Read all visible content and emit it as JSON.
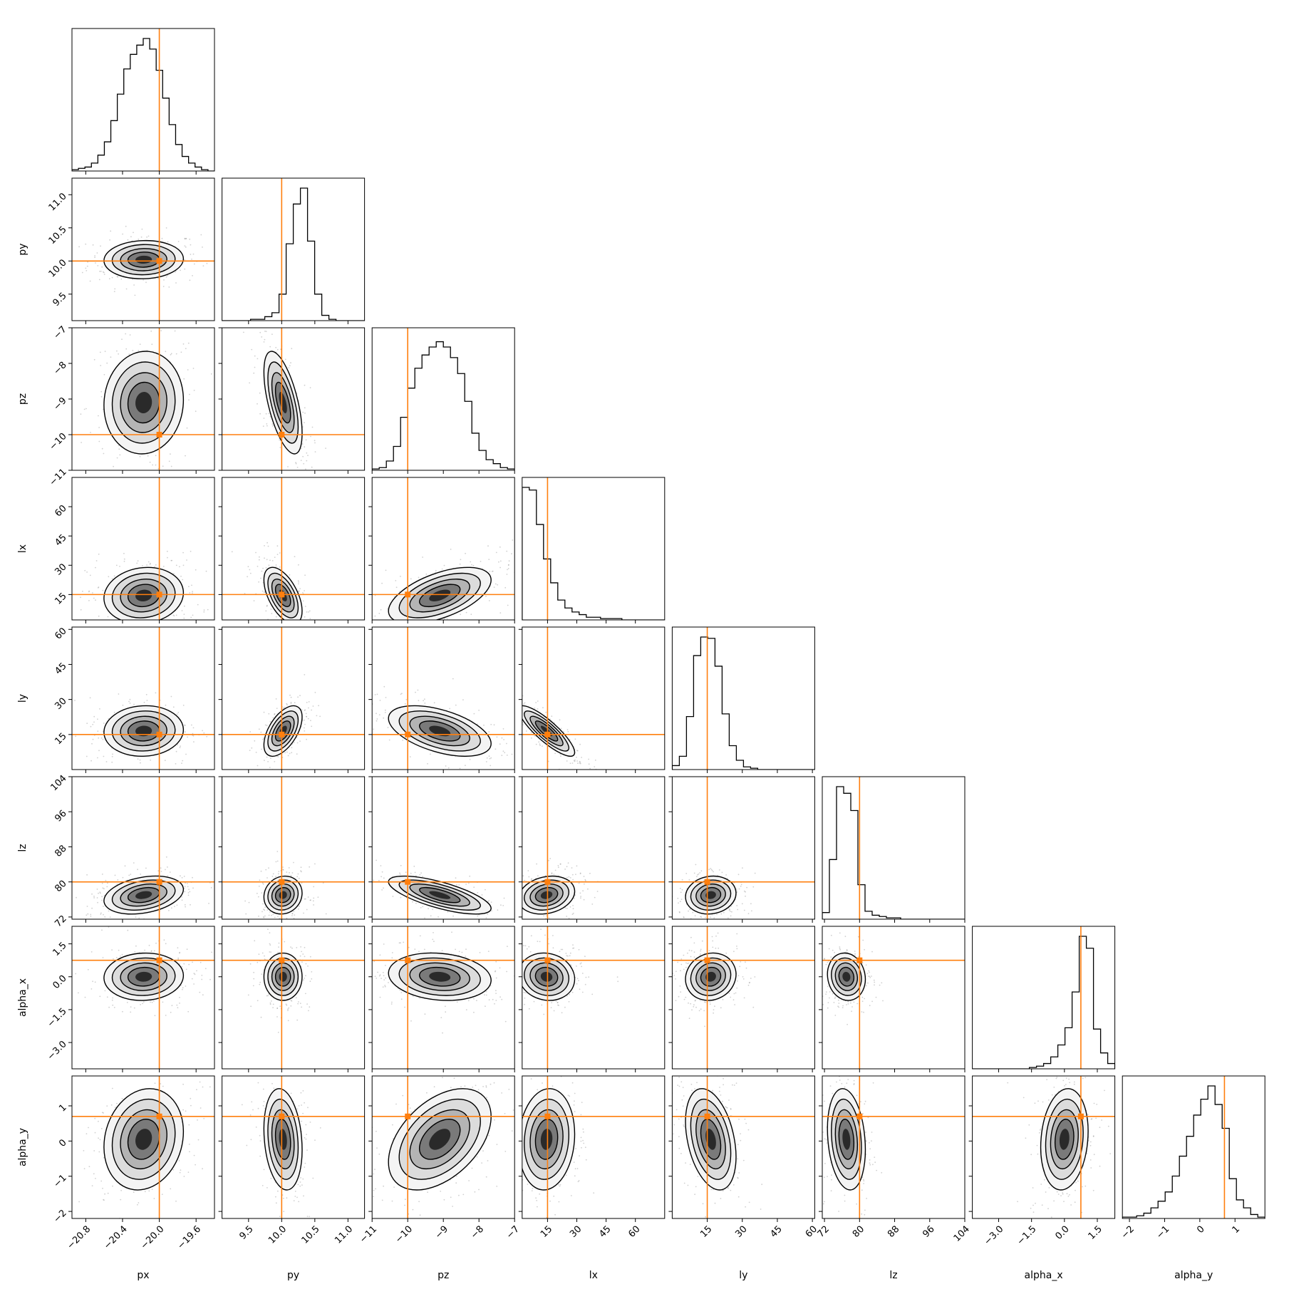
{
  "chart_data": {
    "type": "corner",
    "truth_color": "#ff7f0e",
    "parameters": [
      {
        "key": "px",
        "label": "px",
        "range": [
          -20.95,
          -19.4
        ],
        "ticks": [
          -20.8,
          -20.4,
          -20.0,
          -19.6
        ],
        "tick_labels": [
          "−20.8",
          "−20.4",
          "−20.0",
          "−19.6"
        ],
        "truth": -20.0,
        "mean": -20.17,
        "sd": 0.18,
        "hist": [
          1,
          2,
          3,
          6,
          12,
          22,
          38,
          58,
          77,
          88,
          95,
          100,
          92,
          76,
          55,
          35,
          20,
          11,
          6,
          3,
          1,
          0
        ]
      },
      {
        "key": "py",
        "label": "py",
        "range": [
          9.1,
          11.25
        ],
        "ticks": [
          9.5,
          10.0,
          10.5,
          11.0
        ],
        "tick_labels": [
          "9.5",
          "10.0",
          "10.5",
          "11.0"
        ],
        "truth": 10.0,
        "mean": 10.02,
        "sd": 0.12,
        "hist": [
          0,
          0,
          0,
          0,
          1,
          1,
          3,
          6,
          20,
          58,
          88,
          100,
          60,
          20,
          4,
          1,
          0,
          0,
          0,
          0
        ]
      },
      {
        "key": "pz",
        "label": "pz",
        "range": [
          -11.0,
          -7.0
        ],
        "ticks": [
          -11,
          -10,
          -9,
          -8,
          -7
        ],
        "tick_labels": [
          "−11",
          "−10",
          "−9",
          "−8",
          "−7"
        ],
        "truth": -10.0,
        "mean": -9.1,
        "sd": 0.6,
        "hist": [
          1,
          2,
          7,
          18,
          40,
          62,
          77,
          87,
          93,
          97,
          93,
          85,
          73,
          52,
          28,
          15,
          8,
          5,
          2,
          1
        ]
      },
      {
        "key": "lx",
        "label": "lx",
        "range": [
          2,
          75
        ],
        "ticks": [
          15,
          30,
          45,
          60
        ],
        "tick_labels": [
          "15",
          "30",
          "45",
          "60"
        ],
        "truth": 15.0,
        "mean": 14.5,
        "sd": 6,
        "hist": [
          100,
          98,
          72,
          46,
          28,
          15,
          9,
          6,
          4,
          2,
          2,
          1,
          1,
          1,
          0,
          0,
          0,
          0,
          0,
          0
        ]
      },
      {
        "key": "ly",
        "label": "ly",
        "range": [
          0,
          61
        ],
        "ticks": [
          15,
          30,
          45,
          60
        ],
        "tick_labels": [
          "15",
          "30",
          "45",
          "60"
        ],
        "truth": 15.0,
        "mean": 16.5,
        "sd": 4.5,
        "hist": [
          3,
          10,
          40,
          86,
          100,
          99,
          78,
          42,
          18,
          7,
          2,
          1,
          0,
          0,
          0,
          0,
          0,
          0,
          0,
          0
        ]
      },
      {
        "key": "lz",
        "label": "lz",
        "range": [
          71.5,
          104
        ],
        "ticks": [
          72,
          80,
          88,
          96,
          104
        ],
        "tick_labels": [
          "72",
          "80",
          "88",
          "96",
          "104"
        ],
        "truth": 80.0,
        "mean": 77.0,
        "sd": 1.8,
        "hist": [
          5,
          45,
          100,
          95,
          82,
          26,
          6,
          3,
          2,
          1,
          1,
          0,
          0,
          0,
          0,
          0,
          0,
          0,
          0,
          0
        ]
      },
      {
        "key": "alpha_x",
        "label": "alpha_x",
        "range": [
          -4.2,
          2.3
        ],
        "ticks": [
          -3.0,
          -1.5,
          0.0,
          1.5
        ],
        "tick_labels": [
          "−3.0",
          "−1.5",
          "0.0",
          "1.5"
        ],
        "truth": 0.75,
        "mean": 0.0,
        "sd": 0.45,
        "hist": [
          0,
          0,
          0,
          0,
          0,
          0,
          0,
          0,
          1,
          2,
          4,
          9,
          18,
          31,
          58,
          100,
          91,
          30,
          12,
          4
        ]
      },
      {
        "key": "alpha_y",
        "label": "alpha_y",
        "range": [
          -2.2,
          1.85
        ],
        "ticks": [
          -2,
          -1,
          0,
          1
        ],
        "tick_labels": [
          "−2",
          "−1",
          "0",
          "1"
        ],
        "truth": 0.7,
        "mean": 0.05,
        "sd": 0.6,
        "hist": [
          1,
          1,
          2,
          4,
          8,
          13,
          20,
          32,
          47,
          62,
          78,
          90,
          100,
          86,
          68,
          30,
          14,
          8,
          3,
          1
        ]
      }
    ],
    "correlations": [
      [
        0
      ],
      [
        0.05,
        0
      ],
      [
        0.05,
        -0.6,
        0
      ],
      [
        0.1,
        -0.55,
        0.55,
        0
      ],
      [
        0.05,
        0.55,
        -0.5,
        -0.85,
        0
      ],
      [
        0.3,
        0.1,
        -0.7,
        0.2,
        0.1,
        0
      ],
      [
        0.05,
        0.0,
        -0.15,
        -0.1,
        0.1,
        -0.1,
        0
      ],
      [
        0.15,
        -0.2,
        0.45,
        0.1,
        -0.35,
        -0.2,
        0.15,
        0
      ]
    ]
  }
}
